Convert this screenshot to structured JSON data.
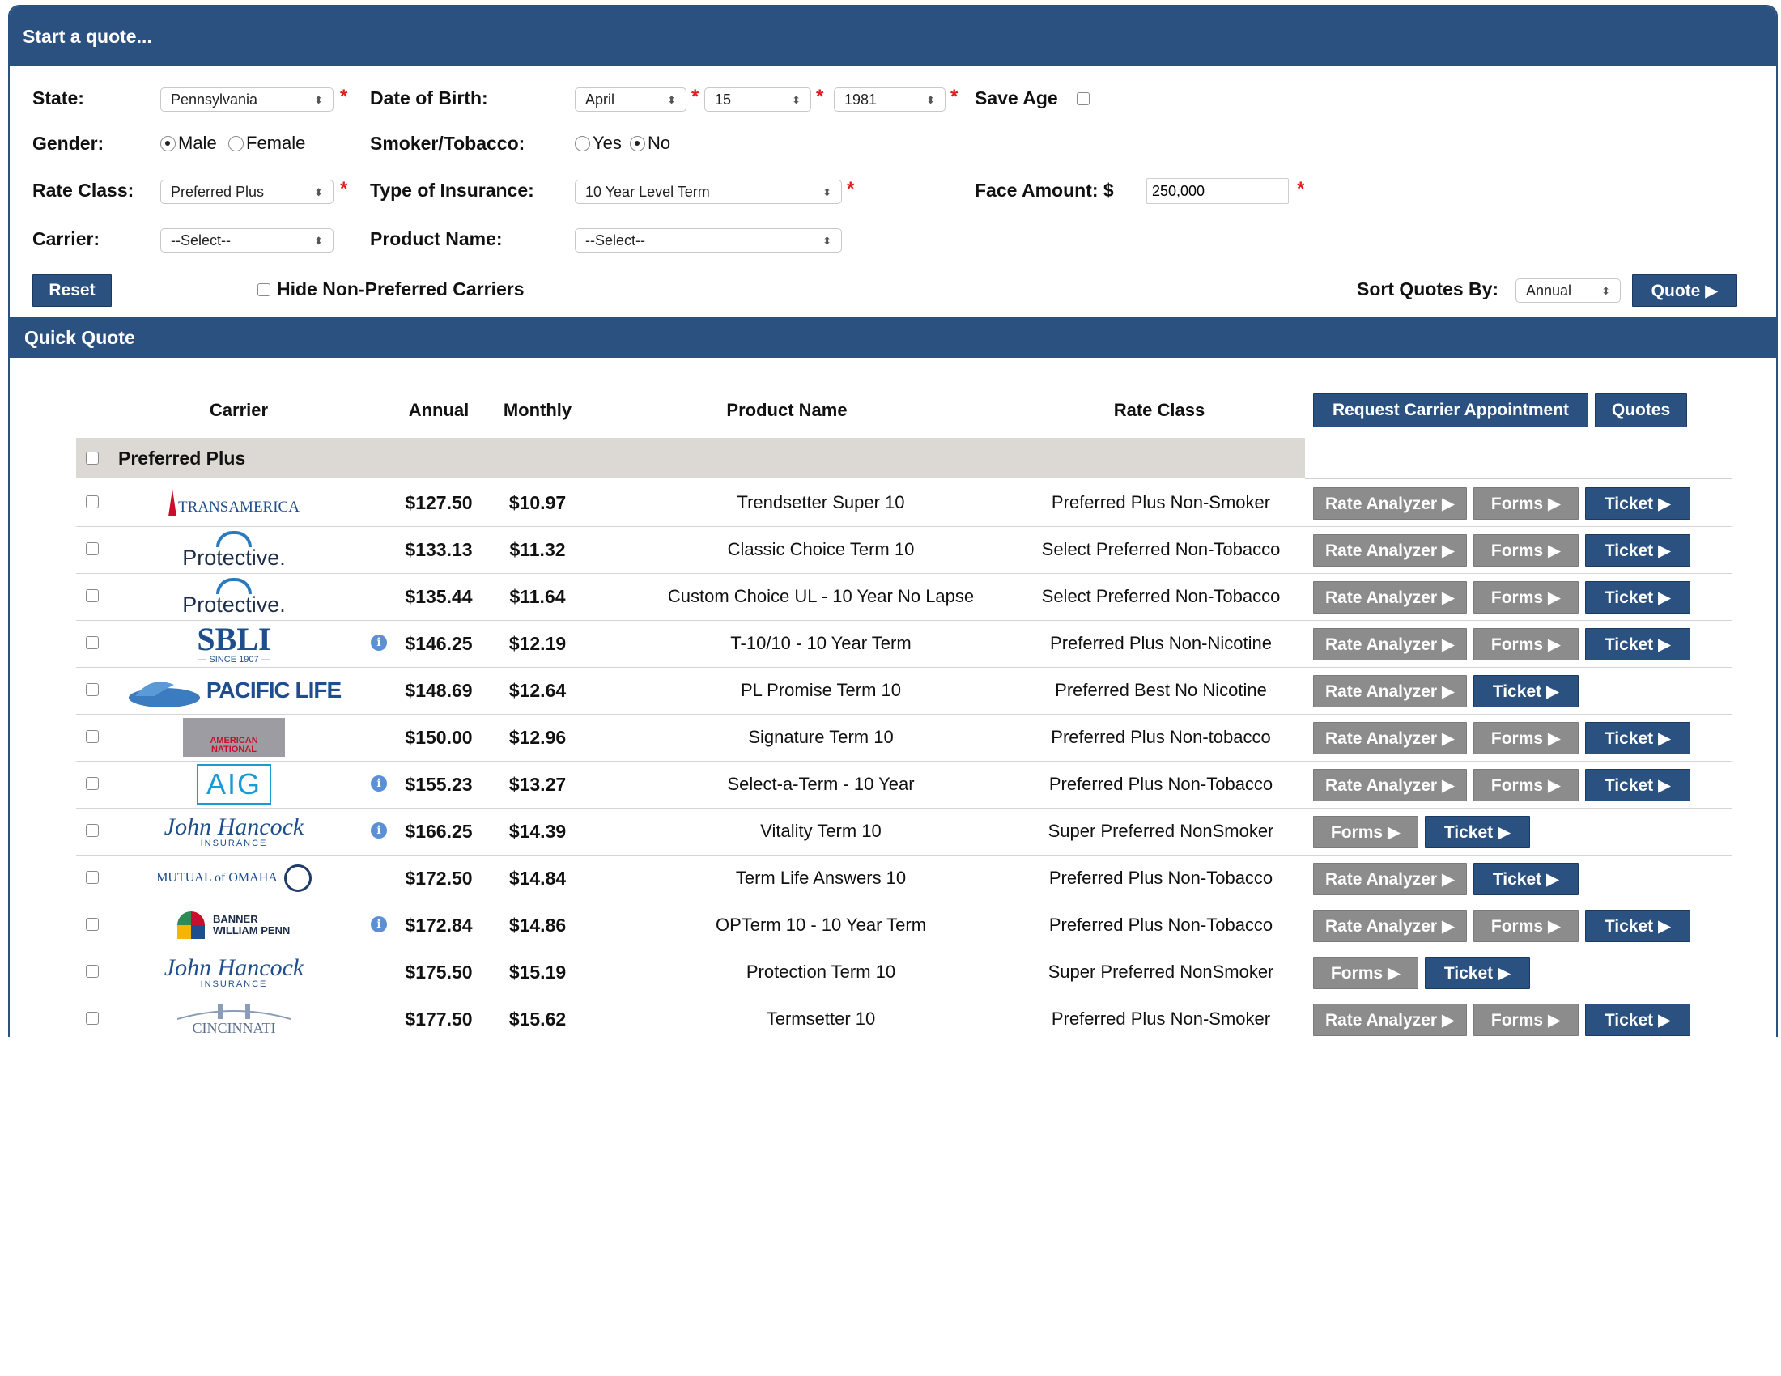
{
  "header": {
    "title": "Start a quote..."
  },
  "form": {
    "state_label": "State:",
    "state_value": "Pennsylvania",
    "dob_label": "Date of Birth:",
    "dob_month": "April",
    "dob_day": "15",
    "dob_year": "1981",
    "save_age_label": "Save Age",
    "gender_label": "Gender:",
    "gender_male": "Male",
    "gender_female": "Female",
    "smoker_label": "Smoker/Tobacco:",
    "smoker_yes": "Yes",
    "smoker_no": "No",
    "rate_class_label": "Rate Class:",
    "rate_class_value": "Preferred Plus",
    "insurance_type_label": "Type of Insurance:",
    "insurance_type_value": "10 Year Level Term",
    "face_amount_label": "Face Amount: $",
    "face_amount_value": "250,000",
    "carrier_label": "Carrier:",
    "carrier_value": "--Select--",
    "product_name_label": "Product Name:",
    "product_name_value": "--Select--",
    "reset_label": "Reset",
    "hide_non_preferred_label": "Hide Non-Preferred Carriers",
    "sort_label": "Sort Quotes By:",
    "sort_value": "Annual",
    "quote_label": "Quote ▶",
    "required_mark": "*"
  },
  "quick_quote": {
    "title": "Quick Quote",
    "columns": {
      "carrier": "Carrier",
      "annual": "Annual",
      "monthly": "Monthly",
      "product": "Product Name",
      "rate_class": "Rate Class"
    },
    "request_appointment_label": "Request Carrier Appointment",
    "quotes_label": "Quotes",
    "group_label": "Preferred Plus",
    "btn_rate": "Rate Analyzer ▶",
    "btn_forms": "Forms ▶",
    "btn_ticket": "Ticket ▶",
    "rows": [
      {
        "carrier": "Transamerica",
        "logo_text": "TRANSAMERICA",
        "annual": "$127.50",
        "monthly": "$10.97",
        "product": "Trendsetter Super 10",
        "rate_class": "Preferred Plus Non-Smoker",
        "info": false,
        "buttons": [
          "rate",
          "forms",
          "ticket"
        ]
      },
      {
        "carrier": "Protective",
        "logo_text": "Protective.",
        "annual": "$133.13",
        "monthly": "$11.32",
        "product": "Classic Choice Term 10",
        "rate_class": "Select Preferred Non-Tobacco",
        "info": false,
        "buttons": [
          "rate",
          "forms",
          "ticket"
        ]
      },
      {
        "carrier": "Protective",
        "logo_text": "Protective.",
        "annual": "$135.44",
        "monthly": "$11.64",
        "product": "Custom Choice UL - 10 Year No Lapse",
        "rate_class": "Select Preferred Non-Tobacco",
        "info": false,
        "buttons": [
          "rate",
          "forms",
          "ticket"
        ]
      },
      {
        "carrier": "SBLI",
        "logo_text": "SBLI",
        "logo_sub": "— SINCE 1907 —",
        "annual": "$146.25",
        "monthly": "$12.19",
        "product": "T-10/10 - 10 Year Term",
        "rate_class": "Preferred Plus Non-Nicotine",
        "info": true,
        "buttons": [
          "rate",
          "forms",
          "ticket"
        ]
      },
      {
        "carrier": "Pacific Life",
        "logo_text": "PACIFIC LIFE",
        "annual": "$148.69",
        "monthly": "$12.64",
        "product": "PL Promise Term 10",
        "rate_class": "Preferred Best No Nicotine",
        "info": false,
        "buttons": [
          "rate",
          "ticket"
        ]
      },
      {
        "carrier": "American National",
        "logo_text": "AMERICAN NATIONAL",
        "annual": "$150.00",
        "monthly": "$12.96",
        "product": "Signature Term 10",
        "rate_class": "Preferred Plus Non-tobacco",
        "info": false,
        "buttons": [
          "rate",
          "forms",
          "ticket"
        ]
      },
      {
        "carrier": "AIG",
        "logo_text": "AIG",
        "annual": "$155.23",
        "monthly": "$13.27",
        "product": "Select-a-Term - 10 Year",
        "rate_class": "Preferred Plus Non-Tobacco",
        "info": true,
        "buttons": [
          "rate",
          "forms",
          "ticket"
        ]
      },
      {
        "carrier": "John Hancock",
        "logo_text": "John Hancock",
        "logo_sub": "INSURANCE",
        "annual": "$166.25",
        "monthly": "$14.39",
        "product": "Vitality Term 10",
        "rate_class": "Super Preferred NonSmoker",
        "info": true,
        "buttons": [
          "forms",
          "ticket"
        ]
      },
      {
        "carrier": "Mutual of Omaha",
        "logo_text": "MUTUAL of OMAHA",
        "annual": "$172.50",
        "monthly": "$14.84",
        "product": "Term Life Answers 10",
        "rate_class": "Preferred Plus Non-Tobacco",
        "info": false,
        "buttons": [
          "rate",
          "ticket"
        ]
      },
      {
        "carrier": "Banner William Penn",
        "logo_text": "BANNER WILLIAM PENN",
        "annual": "$172.84",
        "monthly": "$14.86",
        "product": "OPTerm 10 - 10 Year Term",
        "rate_class": "Preferred Plus Non-Tobacco",
        "info": true,
        "buttons": [
          "rate",
          "forms",
          "ticket"
        ]
      },
      {
        "carrier": "John Hancock",
        "logo_text": "John Hancock",
        "logo_sub": "INSURANCE",
        "annual": "$175.50",
        "monthly": "$15.19",
        "product": "Protection Term 10",
        "rate_class": "Super Preferred NonSmoker",
        "info": false,
        "buttons": [
          "forms",
          "ticket"
        ]
      },
      {
        "carrier": "Cincinnati",
        "logo_text": "CINCINNATI",
        "annual": "$177.50",
        "monthly": "$15.62",
        "product": "Termsetter 10",
        "rate_class": "Preferred Plus Non-Smoker",
        "info": false,
        "buttons": [
          "rate",
          "forms",
          "ticket"
        ]
      }
    ]
  },
  "colors": {
    "primary": "#2a5180",
    "gray_button": "#8c8c8c",
    "required": "#e21b1b",
    "group_row": "#dcd9d4"
  }
}
